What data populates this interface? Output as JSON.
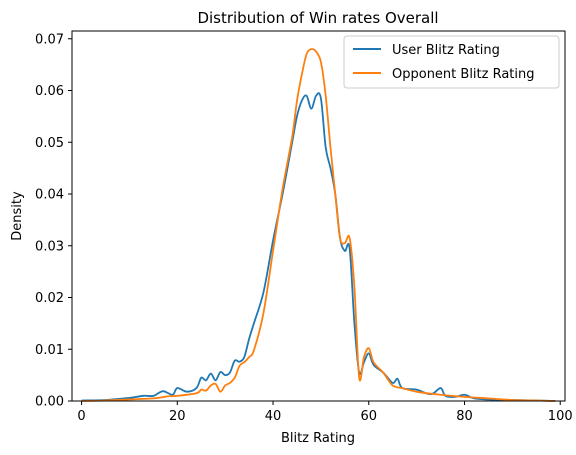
{
  "chart_data": {
    "type": "line",
    "title": "Distribution of Win rates Overall",
    "xlabel": "Blitz Rating",
    "ylabel": "Density",
    "xlim": [
      -2,
      101
    ],
    "ylim": [
      0,
      0.0715
    ],
    "xticks": [
      0,
      20,
      40,
      60,
      80,
      100
    ],
    "yticks": [
      0.0,
      0.01,
      0.02,
      0.03,
      0.04,
      0.05,
      0.06,
      0.07
    ],
    "grid": false,
    "legend_position": "top-right",
    "series": [
      {
        "name": "User Blitz Rating",
        "color": "#1f77b4",
        "x": [
          0,
          5,
          10,
          13,
          15,
          17,
          19,
          20,
          22,
          24,
          25,
          26,
          27,
          28,
          29,
          30,
          31,
          32,
          33,
          34,
          35,
          36,
          38,
          40,
          42,
          44,
          45,
          46,
          47,
          48,
          49,
          50,
          51,
          52,
          53,
          54,
          55,
          56,
          57,
          58,
          59,
          60,
          61,
          63,
          65,
          66,
          67,
          70,
          73,
          75,
          76,
          78,
          80,
          82,
          85,
          90,
          95,
          99
        ],
        "y": [
          0.0001,
          0.0002,
          0.0006,
          0.001,
          0.001,
          0.0019,
          0.0012,
          0.0025,
          0.0018,
          0.0025,
          0.0045,
          0.004,
          0.0053,
          0.004,
          0.0056,
          0.005,
          0.0055,
          0.0078,
          0.0076,
          0.0085,
          0.012,
          0.015,
          0.021,
          0.031,
          0.04,
          0.05,
          0.055,
          0.058,
          0.059,
          0.0565,
          0.059,
          0.0585,
          0.049,
          0.045,
          0.04,
          0.0315,
          0.029,
          0.0295,
          0.015,
          0.0055,
          0.0075,
          0.0092,
          0.007,
          0.0055,
          0.0035,
          0.0043,
          0.0025,
          0.0022,
          0.0013,
          0.0025,
          0.001,
          0.0008,
          0.0012,
          0.0005,
          0.0003,
          0.0002,
          0.0001,
          0.0
        ]
      },
      {
        "name": "Opponent Blitz Rating",
        "color": "#ff7f0e",
        "x": [
          0,
          5,
          10,
          15,
          18,
          20,
          24,
          25,
          26,
          27,
          28,
          29,
          30,
          31,
          32,
          33,
          34,
          35,
          36,
          38,
          40,
          42,
          44,
          45,
          46,
          47,
          48,
          49,
          50,
          51,
          52,
          53,
          54,
          55,
          56,
          57,
          58,
          59,
          60,
          61,
          63,
          65,
          67,
          70,
          75,
          80,
          85,
          90,
          95,
          99
        ],
        "y": [
          0.0,
          0.0001,
          0.0003,
          0.0005,
          0.0009,
          0.001,
          0.0015,
          0.0022,
          0.002,
          0.003,
          0.0033,
          0.0018,
          0.003,
          0.0035,
          0.0045,
          0.0068,
          0.0075,
          0.0085,
          0.0098,
          0.017,
          0.029,
          0.041,
          0.051,
          0.058,
          0.063,
          0.067,
          0.068,
          0.0675,
          0.0655,
          0.059,
          0.049,
          0.04,
          0.0315,
          0.0305,
          0.0315,
          0.022,
          0.0045,
          0.0085,
          0.0102,
          0.0075,
          0.0055,
          0.003,
          0.0025,
          0.0018,
          0.0012,
          0.0008,
          0.0005,
          0.0002,
          0.0001,
          0.0
        ]
      }
    ]
  }
}
